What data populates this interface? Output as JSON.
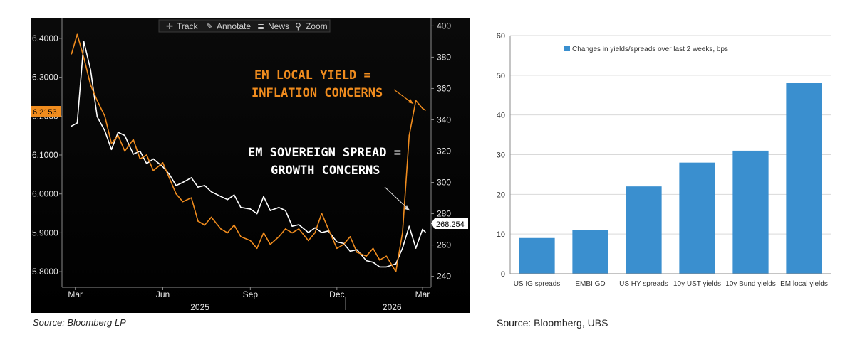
{
  "chart_data": [
    {
      "type": "line",
      "toolbar": [
        "Track",
        "Annotate",
        "News",
        "Zoom"
      ],
      "annotations": [
        "EM LOCAL YIELD =",
        "INFLATION CONCERNS",
        "EM SOVEREIGN SPREAD =",
        "GROWTH CONCERNS"
      ],
      "x_month_labels": [
        "Mar",
        "Jun",
        "Sep",
        "Dec",
        "Mar"
      ],
      "x_year_labels": [
        "2025",
        "2026"
      ],
      "y_left": {
        "ticks": [
          "6.4000",
          "6.3000",
          "6.2000",
          "6.1000",
          "6.0000",
          "5.9000",
          "5.8000"
        ],
        "lim": [
          5.76,
          6.44
        ]
      },
      "y_right": {
        "ticks": [
          "400",
          "380",
          "360",
          "340",
          "320",
          "300",
          "280",
          "260",
          "240"
        ],
        "lim": [
          233,
          402
        ]
      },
      "last_values": {
        "left": "6.2153",
        "right": "268.254"
      },
      "colors": {
        "yield": "#f08c1e",
        "spread": "#ffffff",
        "background": "#000000"
      },
      "series": [
        {
          "name": "EM local yield",
          "axis": "left",
          "x": [
            "2025-02-25",
            "2025-03-03",
            "2025-03-10",
            "2025-03-17",
            "2025-03-24",
            "2025-04-01",
            "2025-04-08",
            "2025-04-15",
            "2025-04-22",
            "2025-05-01",
            "2025-05-08",
            "2025-05-15",
            "2025-05-22",
            "2025-06-01",
            "2025-06-08",
            "2025-06-15",
            "2025-06-22",
            "2025-07-01",
            "2025-07-08",
            "2025-07-15",
            "2025-07-22",
            "2025-08-01",
            "2025-08-08",
            "2025-08-15",
            "2025-08-22",
            "2025-09-01",
            "2025-09-08",
            "2025-09-15",
            "2025-09-22",
            "2025-10-01",
            "2025-10-08",
            "2025-10-15",
            "2025-10-22",
            "2025-11-01",
            "2025-11-08",
            "2025-11-15",
            "2025-11-22",
            "2025-12-01",
            "2025-12-08",
            "2025-12-15",
            "2025-12-22",
            "2026-01-01",
            "2026-01-08",
            "2026-01-15",
            "2026-01-22",
            "2026-02-01",
            "2026-02-08",
            "2026-02-15",
            "2026-02-22",
            "2026-03-01",
            "2026-03-04"
          ],
          "values": [
            6.36,
            6.41,
            6.35,
            6.28,
            6.24,
            6.2,
            6.13,
            6.15,
            6.11,
            6.14,
            6.09,
            6.1,
            6.06,
            6.08,
            6.04,
            6.0,
            5.98,
            5.99,
            5.93,
            5.92,
            5.94,
            5.91,
            5.9,
            5.92,
            5.89,
            5.88,
            5.86,
            5.9,
            5.87,
            5.89,
            5.91,
            5.9,
            5.91,
            5.88,
            5.9,
            5.95,
            5.91,
            5.86,
            5.87,
            5.89,
            5.85,
            5.84,
            5.86,
            5.83,
            5.84,
            5.8,
            5.9,
            6.15,
            6.24,
            6.22,
            6.2153
          ]
        },
        {
          "name": "EM sovereign spread",
          "axis": "right",
          "x": [
            "2025-02-25",
            "2025-03-03",
            "2025-03-10",
            "2025-03-17",
            "2025-03-24",
            "2025-04-01",
            "2025-04-08",
            "2025-04-15",
            "2025-04-22",
            "2025-05-01",
            "2025-05-08",
            "2025-05-15",
            "2025-05-22",
            "2025-06-01",
            "2025-06-08",
            "2025-06-15",
            "2025-06-22",
            "2025-07-01",
            "2025-07-08",
            "2025-07-15",
            "2025-07-22",
            "2025-08-01",
            "2025-08-08",
            "2025-08-15",
            "2025-08-22",
            "2025-09-01",
            "2025-09-08",
            "2025-09-15",
            "2025-09-22",
            "2025-10-01",
            "2025-10-08",
            "2025-10-15",
            "2025-10-22",
            "2025-11-01",
            "2025-11-08",
            "2025-11-15",
            "2025-11-22",
            "2025-12-01",
            "2025-12-08",
            "2025-12-15",
            "2025-12-22",
            "2026-01-01",
            "2026-01-08",
            "2026-01-15",
            "2026-01-22",
            "2026-02-01",
            "2026-02-08",
            "2026-02-15",
            "2026-02-22",
            "2026-03-01",
            "2026-03-04"
          ],
          "values": [
            336,
            338,
            390,
            372,
            342,
            333,
            321,
            332,
            330,
            318,
            320,
            312,
            315,
            310,
            305,
            298,
            300,
            303,
            297,
            298,
            294,
            291,
            289,
            292,
            284,
            283,
            280,
            291,
            282,
            284,
            282,
            272,
            273,
            268,
            271,
            268,
            269,
            262,
            261,
            256,
            257,
            250,
            249,
            246,
            246,
            248,
            258,
            272,
            258,
            270,
            268.254
          ]
        }
      ]
    },
    {
      "type": "bar",
      "legend": "Changes in yields/spreads over last 2 weeks, bps",
      "legend_position": "top-left",
      "categories": [
        "US IG spreads",
        "EMBI GD",
        "US HY spreads",
        "10y UST yields",
        "10y Bund yields",
        "EM local yields"
      ],
      "values": [
        9,
        11,
        22,
        28,
        31,
        48
      ],
      "ylim": [
        0,
        60
      ],
      "yticks": [
        "0",
        "10",
        "20",
        "30",
        "40",
        "50",
        "60"
      ],
      "grid": true,
      "colors": {
        "bar": "#3a8fcf",
        "grid": "#d9d9d9"
      }
    }
  ],
  "sources": {
    "left": "Source: Bloomberg LP",
    "right": "Source: Bloomberg, UBS"
  }
}
